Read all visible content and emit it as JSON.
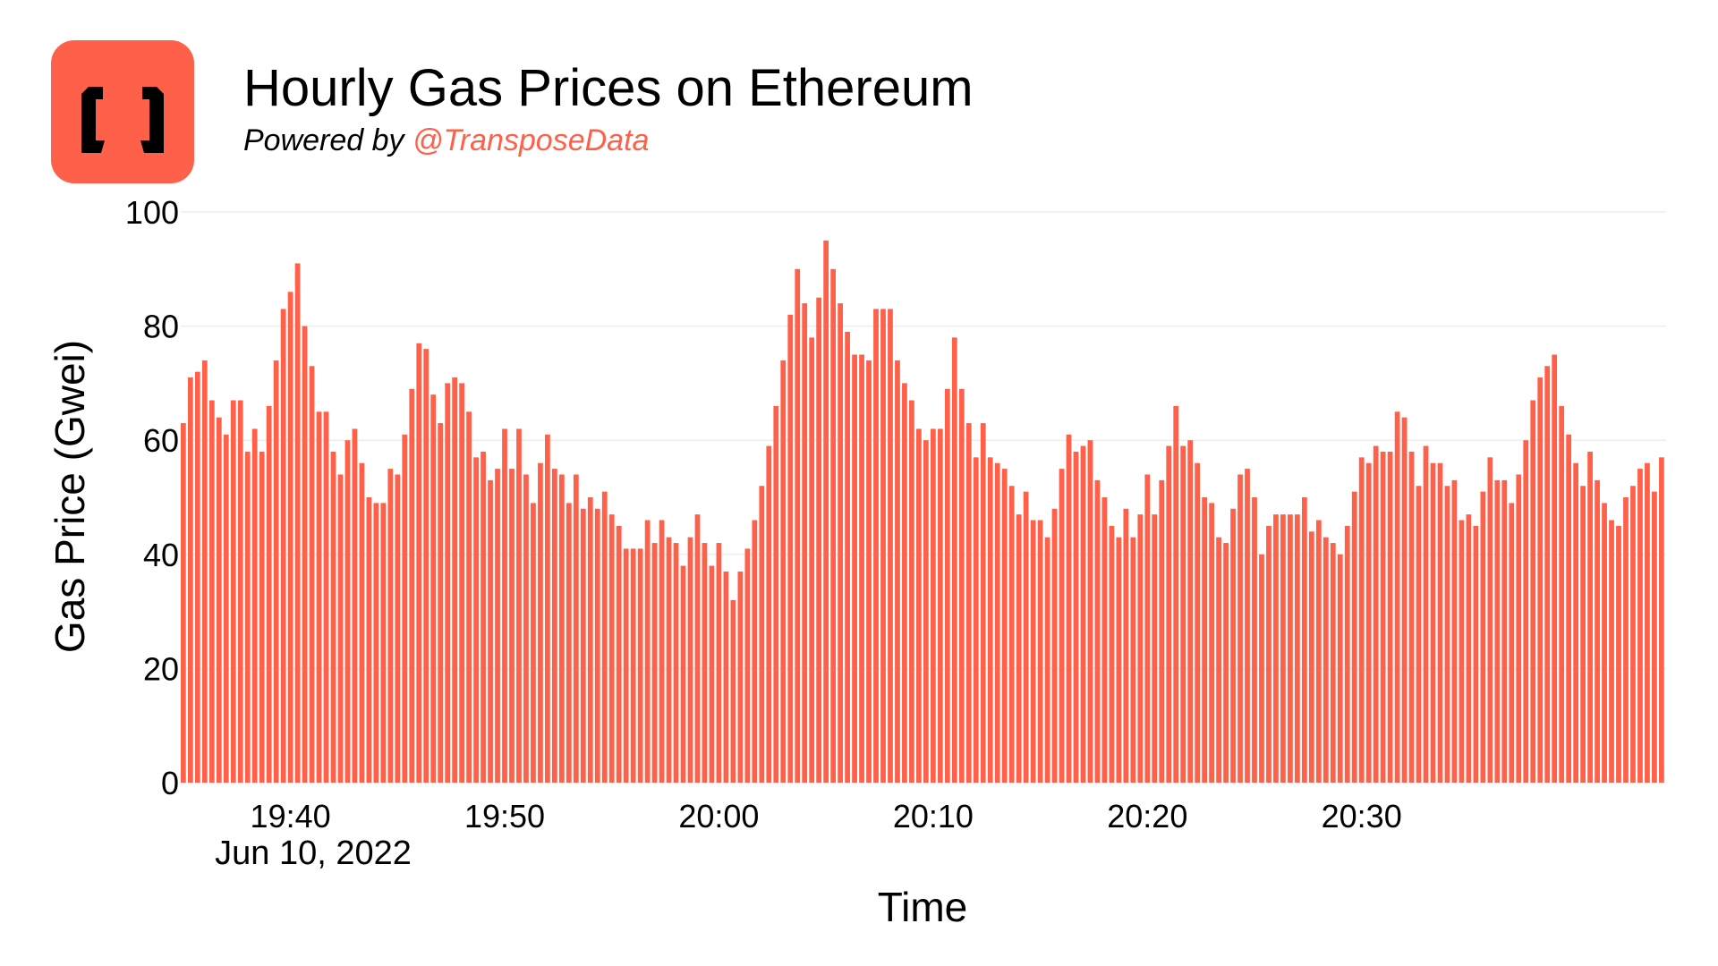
{
  "header": {
    "title": "Hourly Gas Prices on Ethereum",
    "subtitle_prefix": "Powered by ",
    "subtitle_link": "@TransposeData"
  },
  "colors": {
    "accent": "#ff604a",
    "bar": "#ff604a",
    "grid": "#eeeeee"
  },
  "logo": {
    "icon": "bracket-logo-icon"
  },
  "chart_data": {
    "type": "bar",
    "title": "Hourly Gas Prices on Ethereum",
    "xlabel": "Time",
    "ylabel": "Gas Price (Gwei)",
    "ylim": [
      0,
      100
    ],
    "y_ticks": [
      0,
      20,
      40,
      60,
      80,
      100
    ],
    "x_ticks": [
      "19:40",
      "19:50",
      "20:00",
      "20:10",
      "20:20",
      "20:30"
    ],
    "x_date_label": "Jun 10, 2022",
    "x_start": "2022-06-10 19:35:00",
    "x_interval_seconds": 20,
    "grid": true,
    "legend": "none",
    "values": [
      63,
      71,
      72,
      74,
      67,
      64,
      61,
      67,
      67,
      58,
      62,
      58,
      66,
      74,
      83,
      86,
      91,
      80,
      73,
      65,
      65,
      58,
      54,
      60,
      62,
      56,
      50,
      49,
      49,
      55,
      54,
      61,
      69,
      77,
      76,
      68,
      63,
      70,
      71,
      70,
      65,
      57,
      58,
      53,
      55,
      62,
      55,
      62,
      54,
      49,
      56,
      61,
      55,
      54,
      49,
      54,
      48,
      50,
      48,
      51,
      47,
      45,
      41,
      41,
      41,
      46,
      42,
      46,
      43,
      42,
      38,
      43,
      47,
      42,
      38,
      42,
      37,
      32,
      37,
      41,
      46,
      52,
      59,
      66,
      74,
      82,
      90,
      84,
      78,
      85,
      95,
      90,
      84,
      79,
      75,
      75,
      74,
      83,
      83,
      83,
      74,
      70,
      67,
      62,
      60,
      62,
      62,
      69,
      78,
      69,
      63,
      57,
      63,
      57,
      56,
      55,
      52,
      47,
      51,
      46,
      46,
      43,
      48,
      55,
      61,
      58,
      59,
      60,
      53,
      50,
      45,
      43,
      48,
      43,
      47,
      54,
      47,
      53,
      59,
      66,
      59,
      60,
      56,
      50,
      49,
      43,
      42,
      48,
      54,
      55,
      50,
      40,
      45,
      47,
      47,
      47,
      47,
      50,
      44,
      46,
      43,
      42,
      40,
      45,
      51,
      57,
      56,
      59,
      58,
      58,
      65,
      64,
      58,
      52,
      59,
      56,
      56,
      52,
      53,
      46,
      47,
      45,
      51,
      57,
      53,
      53,
      49,
      54,
      60,
      67,
      71,
      73,
      75,
      66,
      61,
      56,
      52,
      58,
      53,
      49,
      46,
      45,
      50,
      52,
      55,
      56,
      51,
      57
    ]
  }
}
